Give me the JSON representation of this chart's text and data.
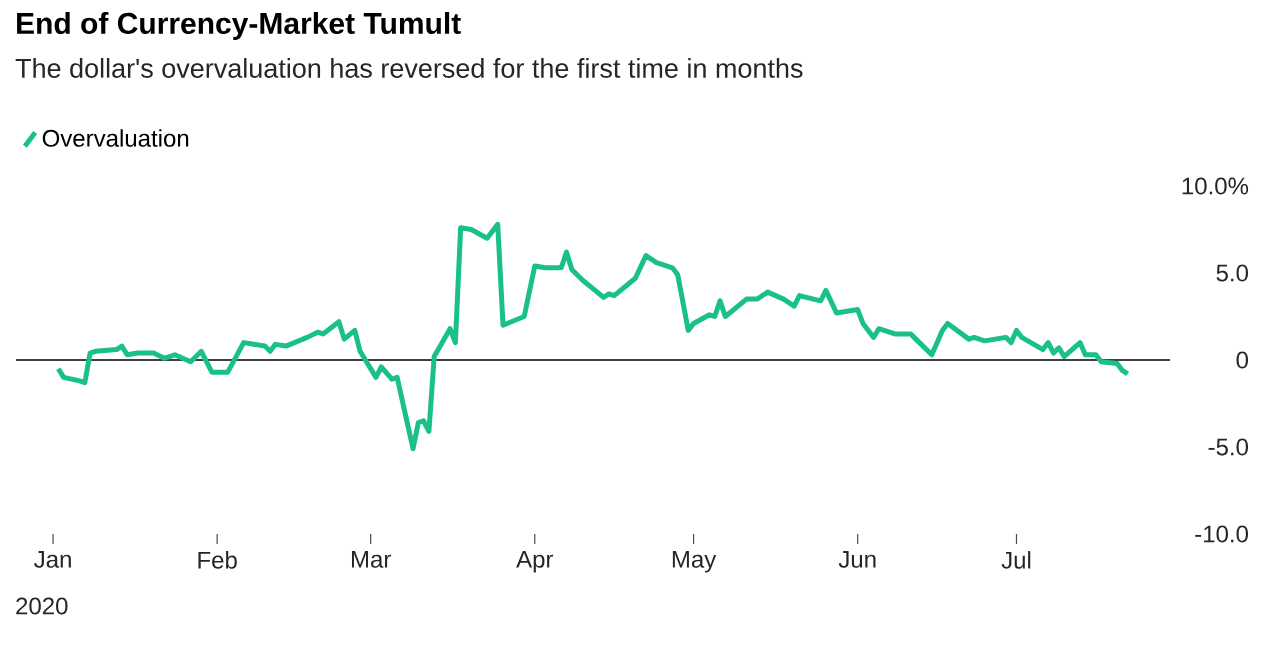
{
  "chart_data": {
    "type": "line",
    "title": "End of Currency-Market Tumult",
    "subtitle": "The dollar's overvaluation has reversed for the first time in months",
    "x": [
      "2020-01-02",
      "2020-01-03",
      "2020-01-06",
      "2020-01-07",
      "2020-01-08",
      "2020-01-09",
      "2020-01-13",
      "2020-01-14",
      "2020-01-15",
      "2020-01-17",
      "2020-01-20",
      "2020-01-22",
      "2020-01-24",
      "2020-01-27",
      "2020-01-29",
      "2020-01-31",
      "2020-02-03",
      "2020-02-06",
      "2020-02-10",
      "2020-02-11",
      "2020-02-12",
      "2020-02-14",
      "2020-02-18",
      "2020-02-20",
      "2020-02-21",
      "2020-02-24",
      "2020-02-25",
      "2020-02-27",
      "2020-02-28",
      "2020-03-02",
      "2020-03-03",
      "2020-03-05",
      "2020-03-06",
      "2020-03-09",
      "2020-03-10",
      "2020-03-11",
      "2020-03-12",
      "2020-03-13",
      "2020-03-16",
      "2020-03-17",
      "2020-03-18",
      "2020-03-20",
      "2020-03-23",
      "2020-03-25",
      "2020-03-26",
      "2020-03-30",
      "2020-04-01",
      "2020-04-03",
      "2020-04-06",
      "2020-04-07",
      "2020-04-08",
      "2020-04-10",
      "2020-04-14",
      "2020-04-15",
      "2020-04-16",
      "2020-04-20",
      "2020-04-22",
      "2020-04-24",
      "2020-04-27",
      "2020-04-28",
      "2020-04-30",
      "2020-05-01",
      "2020-05-04",
      "2020-05-05",
      "2020-05-06",
      "2020-05-07",
      "2020-05-11",
      "2020-05-13",
      "2020-05-15",
      "2020-05-18",
      "2020-05-20",
      "2020-05-21",
      "2020-05-25",
      "2020-05-26",
      "2020-05-28",
      "2020-06-01",
      "2020-06-02",
      "2020-06-04",
      "2020-06-05",
      "2020-06-08",
      "2020-06-11",
      "2020-06-12",
      "2020-06-15",
      "2020-06-17",
      "2020-06-18",
      "2020-06-22",
      "2020-06-23",
      "2020-06-25",
      "2020-06-29",
      "2020-06-30",
      "2020-07-01",
      "2020-07-02",
      "2020-07-06",
      "2020-07-07",
      "2020-07-08",
      "2020-07-09",
      "2020-07-10",
      "2020-07-13",
      "2020-07-14",
      "2020-07-16",
      "2020-07-17",
      "2020-07-20",
      "2020-07-21",
      "2020-07-22"
    ],
    "series": [
      {
        "name": "Overvaluation",
        "color": "#19c088",
        "values": [
          -0.5,
          -1.0,
          -1.2,
          -1.3,
          0.4,
          0.5,
          0.6,
          0.8,
          0.3,
          0.4,
          0.4,
          0.1,
          0.3,
          -0.1,
          0.5,
          -0.7,
          -0.7,
          1.0,
          0.8,
          0.5,
          0.9,
          0.8,
          1.3,
          1.6,
          1.5,
          2.2,
          1.2,
          1.7,
          0.5,
          -1.0,
          -0.4,
          -1.1,
          -1.0,
          -5.1,
          -3.6,
          -3.5,
          -4.1,
          0.2,
          1.8,
          1.0,
          7.6,
          7.5,
          7.0,
          7.8,
          2.0,
          2.5,
          5.4,
          5.3,
          5.3,
          6.2,
          5.2,
          4.6,
          3.6,
          3.8,
          3.7,
          4.7,
          6.0,
          5.6,
          5.3,
          4.9,
          1.7,
          2.1,
          2.6,
          2.5,
          3.4,
          2.5,
          3.5,
          3.5,
          3.9,
          3.5,
          3.1,
          3.7,
          3.4,
          4.0,
          2.7,
          2.9,
          2.1,
          1.3,
          1.8,
          1.5,
          1.5,
          1.2,
          0.3,
          1.7,
          2.1,
          1.2,
          1.3,
          1.1,
          1.3,
          1.0,
          1.7,
          1.3,
          0.6,
          1.0,
          0.4,
          0.7,
          0.2,
          1.0,
          0.3,
          0.3,
          -0.1,
          -0.2,
          -0.6,
          -0.8
        ]
      }
    ],
    "xlim": [
      "2019-12-25",
      "2020-07-30"
    ],
    "xticks": [
      {
        "value": "2020-01-01",
        "label": "Jan"
      },
      {
        "value": "2020-02-01",
        "label": "Feb"
      },
      {
        "value": "2020-03-01",
        "label": "Mar"
      },
      {
        "value": "2020-04-01",
        "label": "Apr"
      },
      {
        "value": "2020-05-01",
        "label": "May"
      },
      {
        "value": "2020-06-01",
        "label": "Jun"
      },
      {
        "value": "2020-07-01",
        "label": "Jul"
      }
    ],
    "annotations": [
      "2020"
    ],
    "ylim": [
      -10,
      10
    ],
    "yticks": [
      {
        "value": 10,
        "label": "10.0%"
      },
      {
        "value": 5,
        "label": "5.0"
      },
      0,
      {
        "value": -5,
        "label": "-5.0"
      },
      {
        "value": -10,
        "label": "-10.0"
      }
    ],
    "ref_lines": [
      {
        "axis": "y",
        "value": 0,
        "color": "#000000"
      }
    ],
    "legend": "top left"
  }
}
